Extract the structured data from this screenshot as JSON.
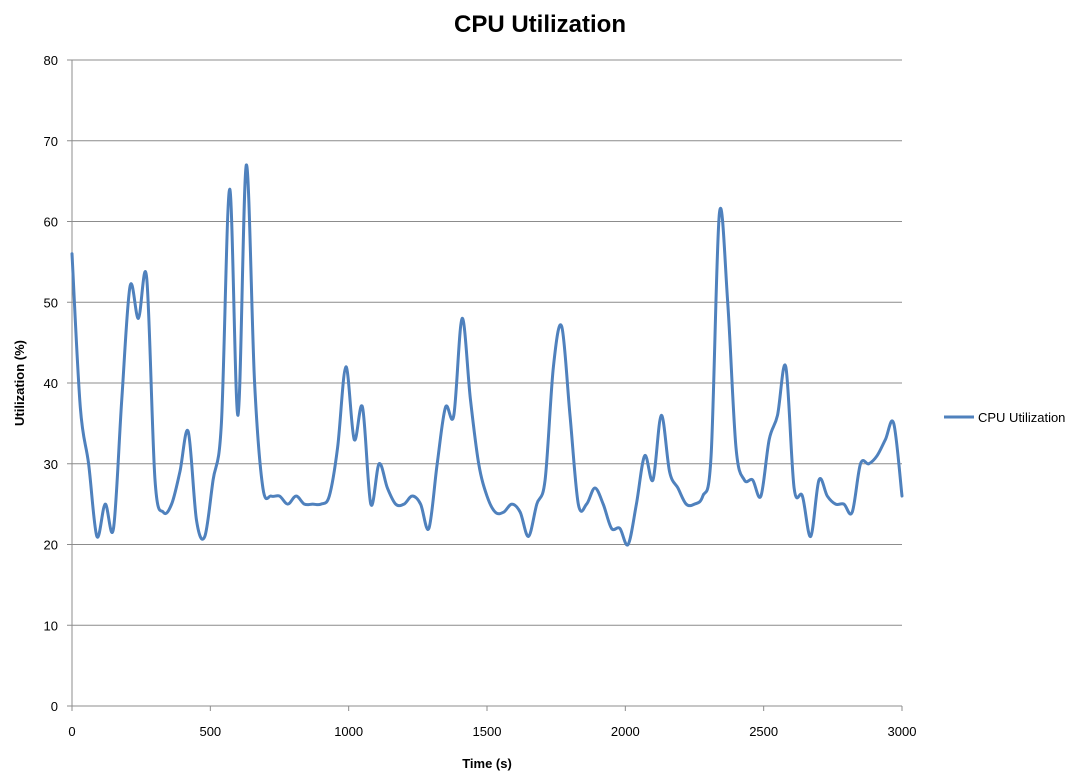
{
  "chart_data": {
    "type": "line",
    "title": "CPU Utilization",
    "xlabel": "Time (s)",
    "ylabel": "Utilization (%)",
    "xlim": [
      0,
      3000
    ],
    "ylim": [
      0,
      80
    ],
    "x_ticks": [
      0,
      500,
      1000,
      1500,
      2000,
      2500,
      3000
    ],
    "y_ticks": [
      0,
      10,
      20,
      30,
      40,
      50,
      60,
      70,
      80
    ],
    "x_tick_labels": [
      "0",
      "500",
      "1000",
      "1500",
      "2000",
      "2500",
      "3000"
    ],
    "y_tick_labels": [
      "0",
      "10",
      "20",
      "30",
      "40",
      "50",
      "60",
      "70",
      "80"
    ],
    "grid": "horizontal",
    "legend_position": "right",
    "line_color": "#4f81bd",
    "series": [
      {
        "name": "CPU Utilization",
        "x": [
          0,
          30,
          60,
          90,
          120,
          150,
          180,
          210,
          240,
          270,
          300,
          330,
          360,
          390,
          420,
          450,
          480,
          510,
          540,
          570,
          600,
          630,
          660,
          690,
          720,
          750,
          780,
          810,
          840,
          870,
          900,
          930,
          960,
          990,
          1020,
          1050,
          1080,
          1110,
          1140,
          1170,
          1200,
          1230,
          1260,
          1290,
          1320,
          1350,
          1380,
          1410,
          1440,
          1470,
          1500,
          1530,
          1560,
          1590,
          1620,
          1650,
          1680,
          1710,
          1740,
          1770,
          1800,
          1830,
          1860,
          1890,
          1920,
          1950,
          1980,
          2010,
          2040,
          2070,
          2100,
          2130,
          2160,
          2190,
          2220,
          2250,
          2280,
          2310,
          2340,
          2370,
          2400,
          2430,
          2460,
          2490,
          2520,
          2550,
          2580,
          2610,
          2640,
          2670,
          2700,
          2730,
          2760,
          2790,
          2820,
          2850,
          2880,
          2910,
          2940,
          2970,
          3000
        ],
        "values": [
          56,
          37,
          30,
          21,
          25,
          22,
          38,
          52,
          48,
          53,
          28,
          24,
          25,
          29,
          34,
          23,
          21,
          28,
          35,
          64,
          36,
          67,
          40,
          27,
          26,
          26,
          25,
          26,
          25,
          25,
          25,
          26,
          32,
          42,
          33,
          37,
          25,
          30,
          27,
          25,
          25,
          26,
          25,
          22,
          30,
          37,
          36,
          48,
          38,
          30,
          26,
          24,
          24,
          25,
          24,
          21,
          25,
          28,
          42,
          47,
          36,
          25,
          25,
          27,
          25,
          22,
          22,
          20,
          25,
          31,
          28,
          36,
          29,
          27,
          25,
          25,
          26,
          31,
          61,
          50,
          32,
          28,
          28,
          26,
          33,
          36,
          42,
          27,
          26,
          21,
          28,
          26,
          25,
          25,
          24,
          30,
          30,
          31,
          33,
          35,
          26
        ]
      }
    ]
  }
}
